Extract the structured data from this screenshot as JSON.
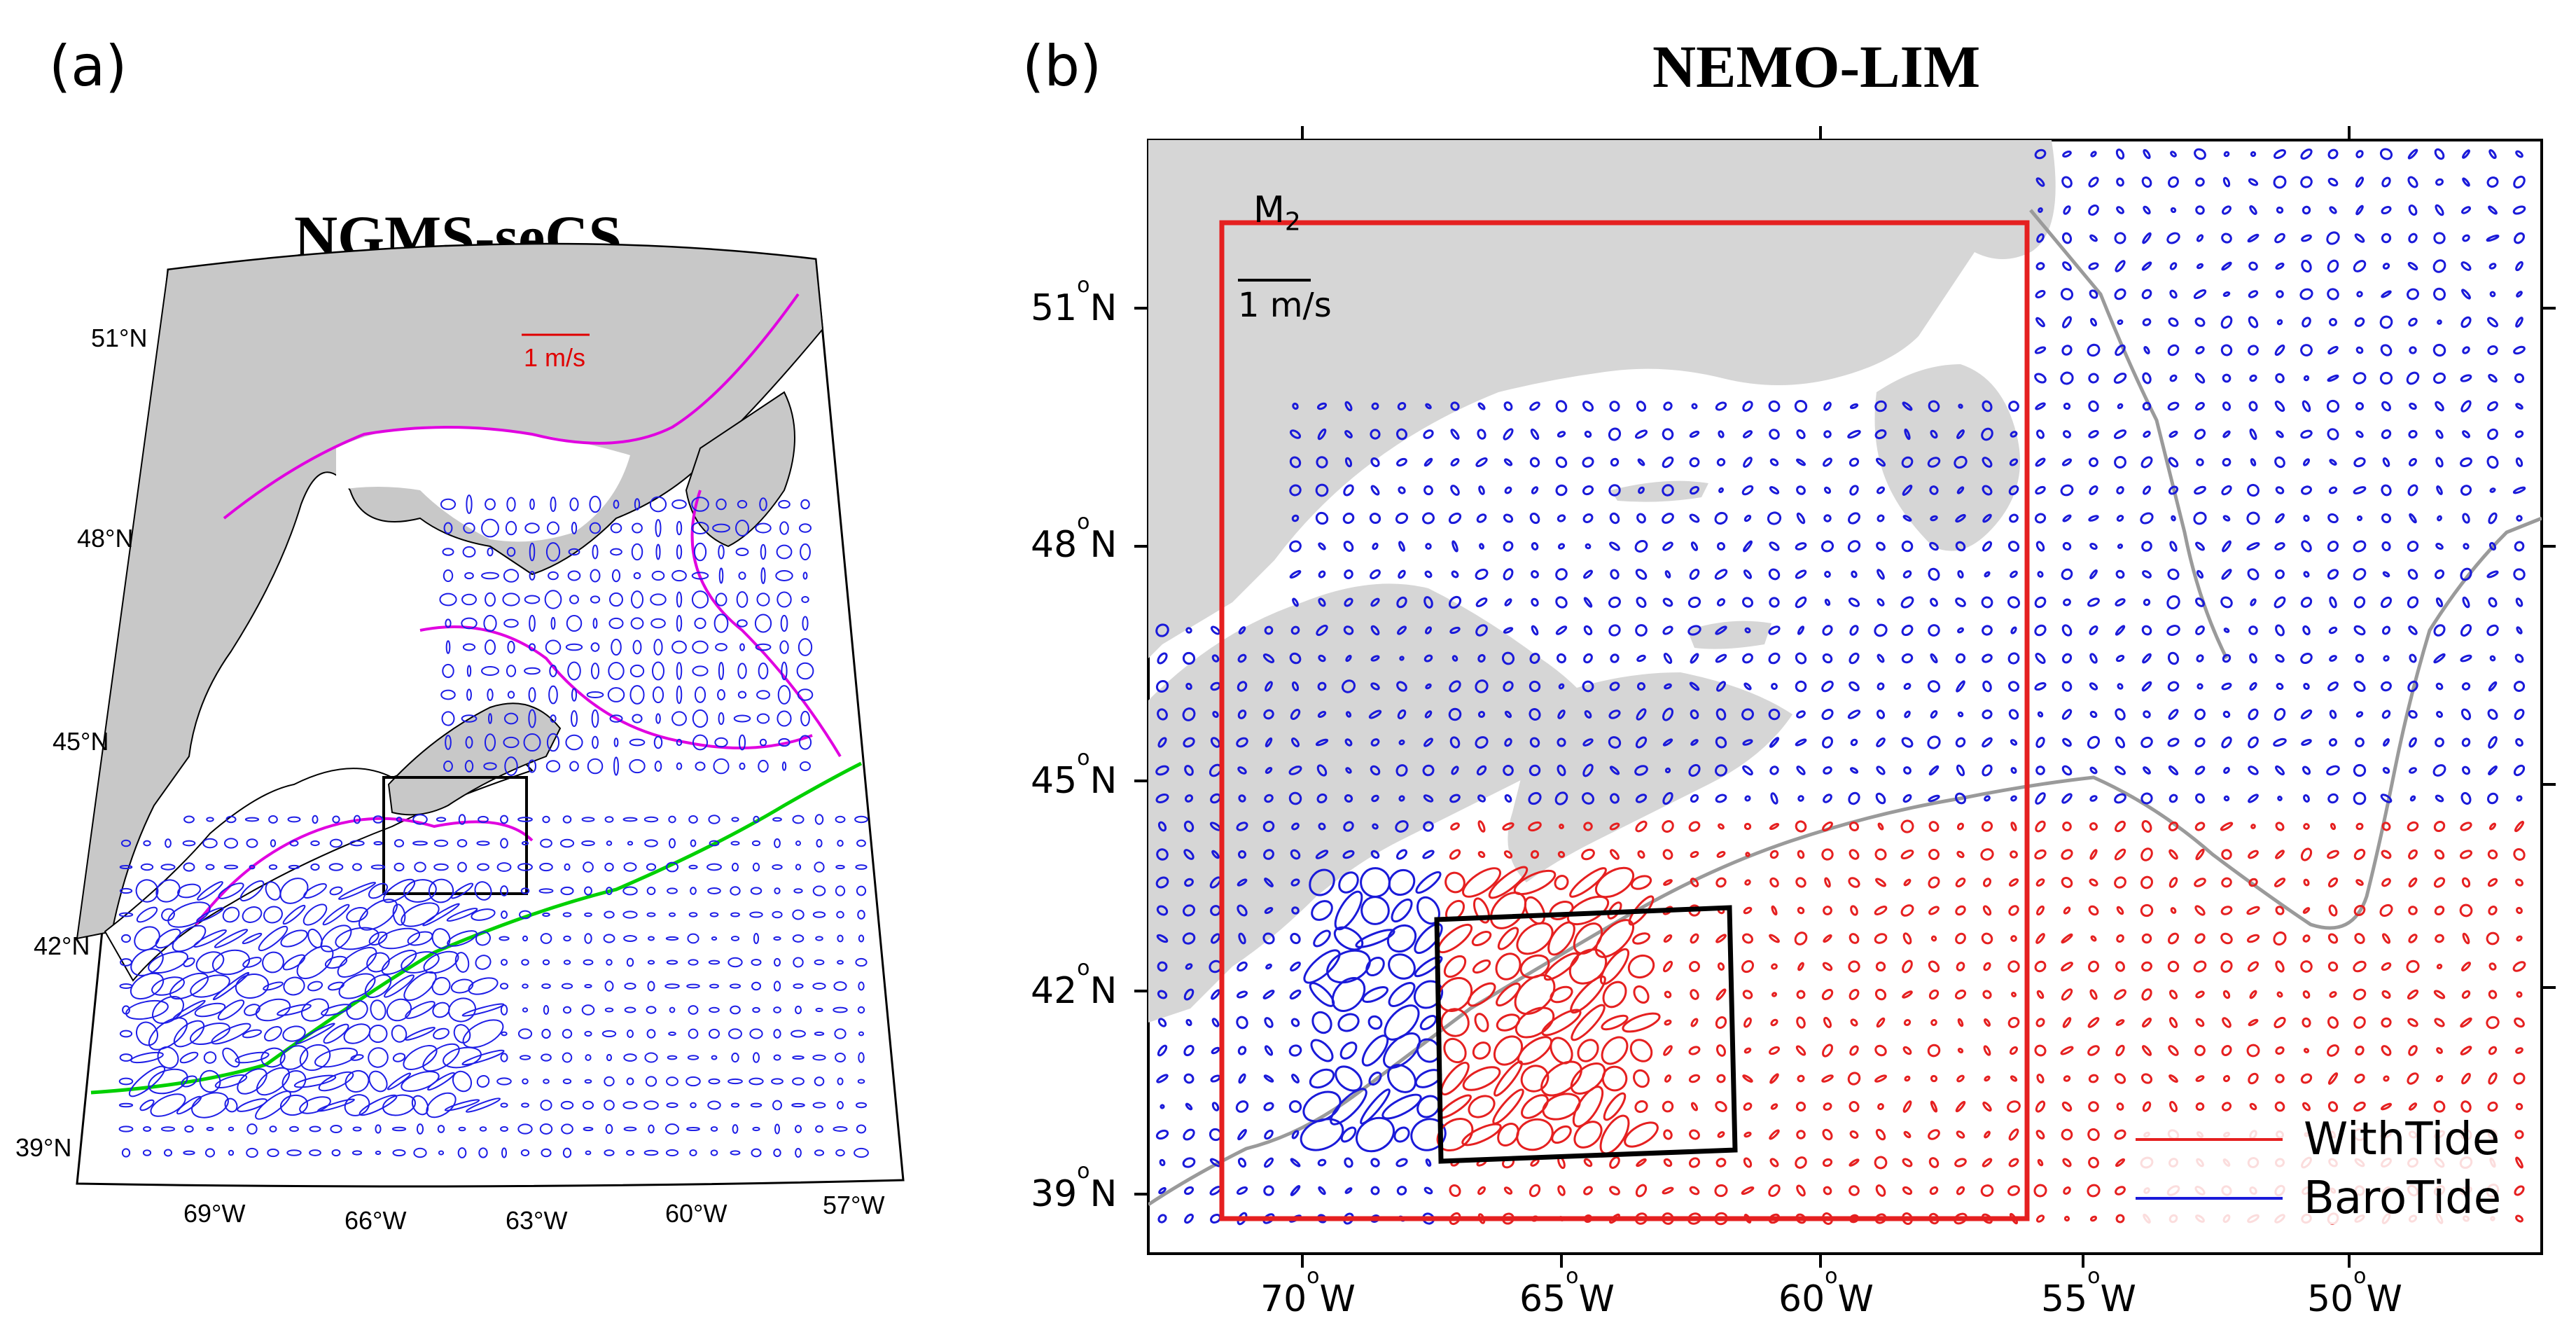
{
  "panel_a": {
    "label": "(a)",
    "title": "NGMS-seCS",
    "scale_label": "1 m/s",
    "scale_color": "#e00000",
    "lat_ticks": [
      "51°N",
      "48°N",
      "45°N",
      "42°N",
      "39°N"
    ],
    "lon_ticks": [
      "69°W",
      "66°W",
      "63°W",
      "60°W",
      "57°W"
    ],
    "colors": {
      "land": "#c8c8c8",
      "ellipse": "#1e1ee6",
      "contour_200m": "#e000e0",
      "shelf_break": "#00e000",
      "box": "#000000"
    }
  },
  "panel_b": {
    "label": "(b)",
    "title": "NEMO-LIM",
    "constituent_main": "M",
    "constituent_sub": "2",
    "scale_label": "1 m/s",
    "lat_ticks": [
      {
        "deg": "51",
        "hemi": "N"
      },
      {
        "deg": "48",
        "hemi": "N"
      },
      {
        "deg": "45",
        "hemi": "N"
      },
      {
        "deg": "42",
        "hemi": "N"
      },
      {
        "deg": "39",
        "hemi": "N"
      }
    ],
    "lon_ticks": [
      {
        "deg": "70",
        "hemi": "W"
      },
      {
        "deg": "65",
        "hemi": "W"
      },
      {
        "deg": "60",
        "hemi": "W"
      },
      {
        "deg": "55",
        "hemi": "W"
      },
      {
        "deg": "50",
        "hemi": "W"
      }
    ],
    "legend": [
      {
        "label": "WithTide",
        "color": "#e52020"
      },
      {
        "label": "BaroTide",
        "color": "#1a1ad9"
      }
    ],
    "colors": {
      "land": "#d6d6d6",
      "isobath": "#9a9a9a",
      "red_box": "#e52020",
      "black_box": "#000000"
    }
  }
}
